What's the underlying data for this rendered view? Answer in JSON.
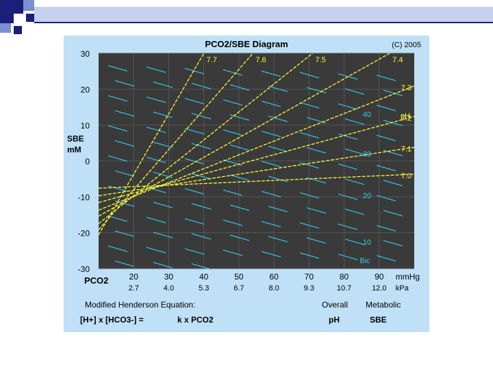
{
  "slide": {
    "accent_colors": [
      "#1a1f7a",
      "#7b8fd1",
      "#c8d0f0"
    ],
    "decoration": "blue-square-pattern"
  },
  "chart_data": {
    "type": "line",
    "title": "PCO2/SBE Diagram",
    "copyright": "(C) 2005",
    "ylabel": "SBE",
    "ylabel_unit": "mM",
    "y_ticks": [
      "30",
      "20",
      "10",
      "0",
      "-10",
      "-20",
      "-30"
    ],
    "ylim": [
      -30,
      30
    ],
    "xlabel": "PCO2",
    "xlim": [
      10,
      100
    ],
    "x_ticks_mmhg": [
      "20",
      "30",
      "40",
      "50",
      "60",
      "70",
      "80",
      "90"
    ],
    "x_ticks_kpa": [
      "2.7",
      "4.0",
      "5.3",
      "6.7",
      "8.0",
      "9.3",
      "10.7",
      "12.0"
    ],
    "x_unit_mmhg": "mmHg",
    "x_unit_kpa": "kPa",
    "ph_label": "pH",
    "bic_label": "Bic",
    "grid": true,
    "background_color": "#3a3a3a",
    "ph_line_color": "#ffff33",
    "bic_line_color": "#33ccee",
    "ph_isopleths": [
      {
        "name": "7.7",
        "pco2": [
          10,
          40
        ],
        "sbe": [
          -20.6,
          30
        ]
      },
      {
        "name": "7.6",
        "pco2": [
          10,
          54
        ],
        "sbe": [
          -19.2,
          30
        ]
      },
      {
        "name": "7.5",
        "pco2": [
          10,
          71
        ],
        "sbe": [
          -17.5,
          30
        ]
      },
      {
        "name": "7.4",
        "pco2": [
          10,
          93
        ],
        "sbe": [
          -15.4,
          30
        ]
      },
      {
        "name": "7.3",
        "pco2": [
          10,
          100
        ],
        "sbe": [
          -13.7,
          20.9
        ]
      },
      {
        "name": "7.2",
        "pco2": [
          10,
          100
        ],
        "sbe": [
          -11.6,
          12.4
        ]
      },
      {
        "name": "7.1",
        "pco2": [
          10,
          100
        ],
        "sbe": [
          -9.7,
          3.8
        ]
      },
      {
        "name": "7.0",
        "pco2": [
          10,
          100
        ],
        "sbe": [
          -7.6,
          -3.7
        ]
      }
    ],
    "bicarbonate_labels": [
      "40",
      "30",
      "20",
      "10"
    ],
    "legend_under_axis": {
      "equation_title": "Modified Henderson Equation:",
      "equation": "[H+]  x  [HCO3-]  =",
      "equation_rhs": "k  x  PCO2",
      "overall": "Overall",
      "metabolic": "Metabolic",
      "overall_value": "pH",
      "metabolic_value": "SBE"
    }
  }
}
